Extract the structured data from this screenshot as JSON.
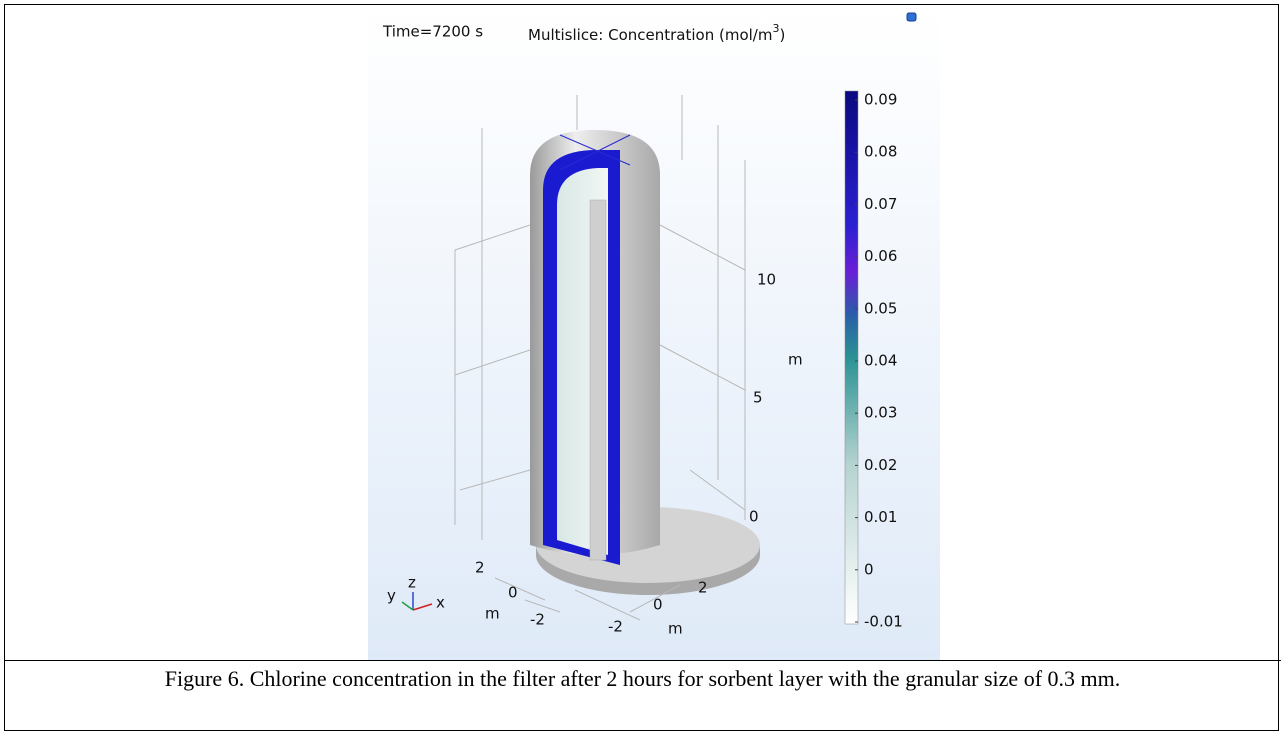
{
  "figure": {
    "time_label": "Time=7200 s",
    "plot_title": {
      "text": "Multislice: Concentration (mol/m",
      "superscript": "3",
      "closing": ")"
    },
    "colorbar": {
      "ticks": [
        0.09,
        0.08,
        0.07,
        0.06,
        0.05,
        0.04,
        0.03,
        0.02,
        0.01,
        0,
        -0.01
      ]
    },
    "z_axis": {
      "ticks": [
        "10",
        "5",
        "0"
      ],
      "unit": "m"
    },
    "y_axis": {
      "ticks": [
        "2",
        "0",
        "-2"
      ],
      "unit": "m"
    },
    "x_axis": {
      "ticks": [
        "-2",
        "0",
        "2"
      ],
      "unit": "m"
    },
    "triad": {
      "x": "x",
      "y": "y",
      "z": "z"
    }
  },
  "caption": "Figure 6. Chlorine concentration in the filter after 2 hours for sorbent layer with the granular size of 0.3 mm."
}
